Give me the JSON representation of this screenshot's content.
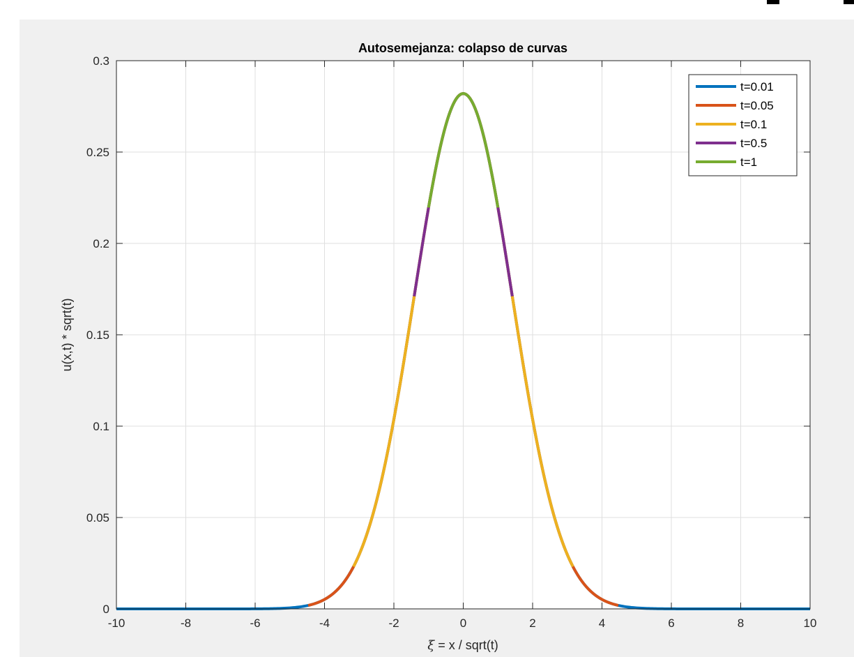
{
  "chart_data": {
    "type": "line",
    "title": "Autosemejanza: colapso de curvas",
    "xlabel_greek": "ξ",
    "xlabel_rest": " = x / sqrt(t)",
    "ylabel": "u(x,t) * sqrt(t)",
    "xlim": [
      -10,
      10
    ],
    "ylim": [
      0,
      0.3
    ],
    "grid": true,
    "legend_position": "top-right",
    "xticks": [
      -10,
      -8,
      -6,
      -4,
      -2,
      0,
      2,
      4,
      6,
      8,
      10
    ],
    "yticks": [
      0,
      0.05,
      0.1,
      0.15,
      0.2,
      0.25,
      0.3
    ],
    "series": [
      {
        "name": "t=0.01",
        "color": "#0072BD",
        "xi_range": [
          -10,
          10
        ]
      },
      {
        "name": "t=0.05",
        "color": "#D95319",
        "xi_range": [
          -4.472,
          4.472
        ]
      },
      {
        "name": "t=0.1",
        "color": "#EDB120",
        "xi_range": [
          -3.162,
          3.162
        ]
      },
      {
        "name": "t=0.5",
        "color": "#7E2F8E",
        "xi_range": [
          -1.414,
          1.414
        ]
      },
      {
        "name": "t=1",
        "color": "#77AC30",
        "xi_range": [
          -1,
          1
        ]
      }
    ],
    "curve_peak": 0.282
  }
}
